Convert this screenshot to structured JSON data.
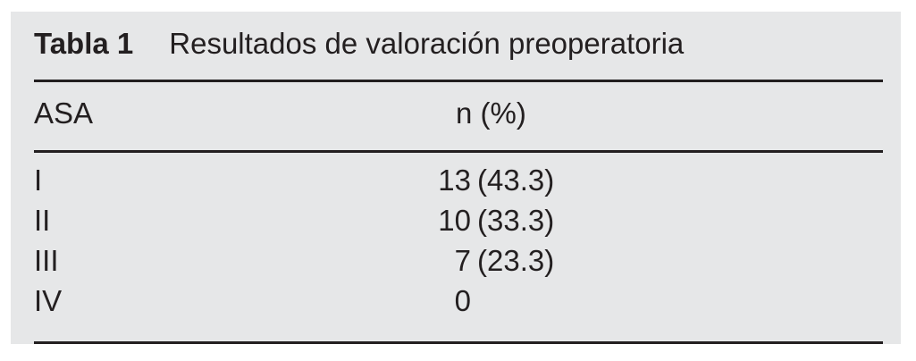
{
  "page": {
    "background": "#ffffff"
  },
  "panel": {
    "background": "#e6e7e8",
    "rule_color": "#231f20",
    "text_color": "#231f20"
  },
  "table": {
    "label": "Tabla 1",
    "title": "Resultados de valoración preoperatoria",
    "header": {
      "asa": "ASA",
      "n": "n (%)"
    },
    "rows": [
      {
        "asa": "I",
        "n": "13",
        "pct": "(43.3)"
      },
      {
        "asa": "II",
        "n": "10",
        "pct": "(33.3)"
      },
      {
        "asa": "III",
        "n": "7",
        "pct": "(23.3)"
      },
      {
        "asa": "IV",
        "n": "0",
        "pct": ""
      }
    ]
  },
  "chart_data": {
    "type": "table",
    "title": "Tabla 1 Resultados de valoración preoperatoria",
    "columns": [
      "ASA",
      "n (%)"
    ],
    "rows": [
      [
        "I",
        "13 (43.3)"
      ],
      [
        "II",
        "10 (33.3)"
      ],
      [
        "III",
        "7 (23.3)"
      ],
      [
        "IV",
        "0"
      ]
    ]
  }
}
